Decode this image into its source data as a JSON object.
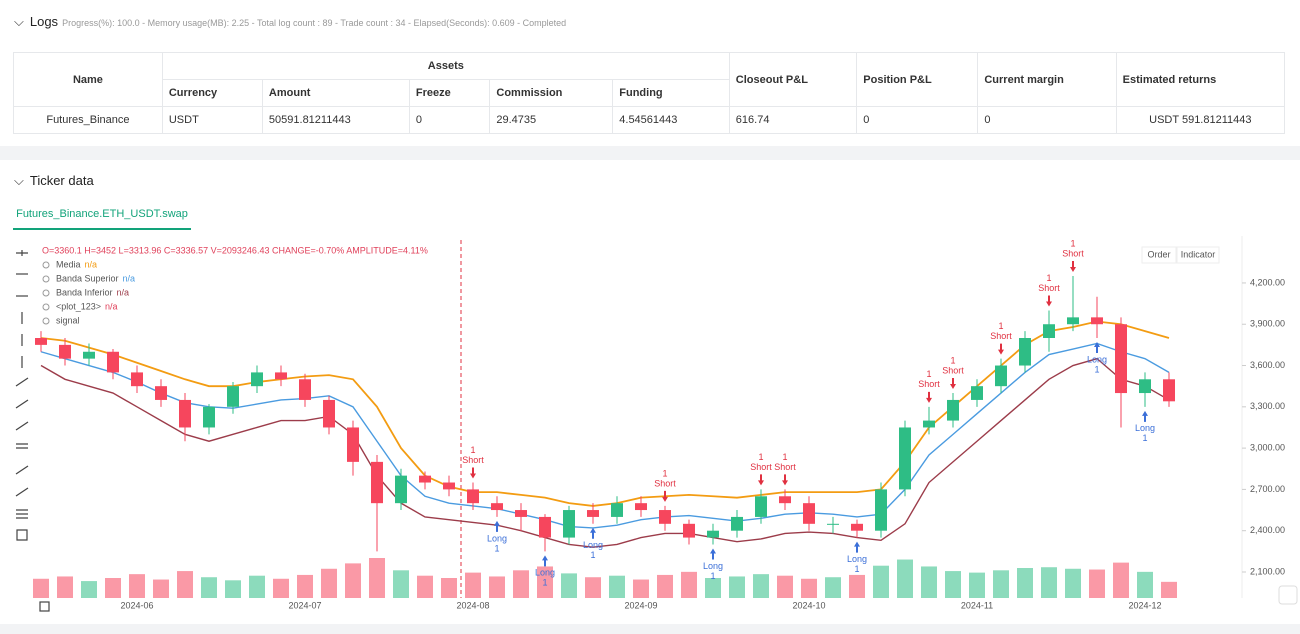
{
  "logs": {
    "title": "Logs",
    "status": "Progress(%): 100.0 - Memory usage(MB): 2.25 - Total log count : 89 - Trade count : 34 - Elapsed(Seconds): 0.609 - Completed",
    "table": {
      "group_header": "Assets",
      "columns": [
        "Name",
        "Currency",
        "Amount",
        "Freeze",
        "Commission",
        "Funding",
        "Closeout P&L",
        "Position P&L",
        "Current margin",
        "Estimated returns"
      ],
      "rows": [
        [
          "Futures_Binance",
          "USDT",
          "50591.81211443",
          "0",
          "29.4735",
          "4.54561443",
          "616.74",
          "0",
          "0",
          "USDT 591.81211443"
        ]
      ]
    }
  },
  "ticker": {
    "title": "Ticker data",
    "tab": "Futures_Binance.ETH_USDT.swap",
    "buttons": [
      "Order",
      "Indicator"
    ],
    "ohlc": "O=3360.1 H=3452 L=3313.96 C=3336.57 V=2093246.43 CHANGE=-0.70% AMPLITUDE=4.11%"
  },
  "chart_data": {
    "type": "candlestick",
    "up_color": "#2ebd85",
    "down_color": "#f6465d",
    "categories": [
      null,
      null,
      null,
      null,
      "2024-06",
      null,
      null,
      null,
      null,
      null,
      null,
      "2024-07",
      null,
      null,
      null,
      null,
      null,
      null,
      "2024-08",
      null,
      null,
      null,
      null,
      null,
      null,
      "2024-09",
      null,
      null,
      null,
      null,
      null,
      null,
      "2024-10",
      null,
      null,
      null,
      null,
      null,
      null,
      "2024-11",
      null,
      null,
      null,
      null,
      null,
      null,
      "2024-12",
      null
    ],
    "open": [
      3800,
      3750,
      3650,
      3700,
      3550,
      3450,
      3350,
      3150,
      3300,
      3450,
      3550,
      3500,
      3350,
      3150,
      2900,
      2600,
      2800,
      2750,
      2700,
      2600,
      2550,
      2500,
      2350,
      2550,
      2500,
      2600,
      2550,
      2450,
      2350,
      2400,
      2500,
      2650,
      2600,
      2450,
      2450,
      2400,
      2700,
      3150,
      3200,
      3350,
      3450,
      3600,
      3800,
      3900,
      3950,
      3900,
      3400,
      3500
    ],
    "high": [
      3850,
      3800,
      3760,
      3720,
      3600,
      3500,
      3400,
      3320,
      3480,
      3600,
      3600,
      3540,
      3380,
      3200,
      2950,
      2850,
      2830,
      2800,
      2750,
      2650,
      2600,
      2520,
      2580,
      2600,
      2650,
      2650,
      2580,
      2480,
      2450,
      2550,
      2700,
      2700,
      2650,
      2500,
      2480,
      2750,
      3200,
      3300,
      3400,
      3500,
      3650,
      3850,
      4000,
      4250,
      4100,
      3950,
      3550,
      3550
    ],
    "low": [
      3700,
      3600,
      3600,
      3500,
      3400,
      3300,
      3050,
      3100,
      3250,
      3400,
      3450,
      3300,
      3100,
      2800,
      2250,
      2550,
      2700,
      2650,
      2550,
      2500,
      2400,
      2250,
      2300,
      2450,
      2450,
      2500,
      2400,
      2300,
      2300,
      2350,
      2450,
      2550,
      2400,
      2380,
      2350,
      2350,
      2650,
      3100,
      3150,
      3300,
      3400,
      3550,
      3700,
      3850,
      3800,
      3150,
      3300,
      3300
    ],
    "close": [
      3750,
      3650,
      3700,
      3550,
      3450,
      3350,
      3150,
      3300,
      3450,
      3550,
      3500,
      3350,
      3150,
      2900,
      2600,
      2800,
      2750,
      2700,
      2600,
      2550,
      2500,
      2350,
      2550,
      2500,
      2600,
      2550,
      2450,
      2350,
      2400,
      2500,
      2650,
      2600,
      2450,
      2450,
      2400,
      2700,
      3150,
      3200,
      3350,
      3450,
      3600,
      3800,
      3900,
      3950,
      3900,
      3400,
      3500,
      3340
    ],
    "volume": [
      2500000,
      2800000,
      2200000,
      2600000,
      3100000,
      2400000,
      3500000,
      2700000,
      2300000,
      2900000,
      2500000,
      3000000,
      3800000,
      4500000,
      5200000,
      3600000,
      2900000,
      2600000,
      3300000,
      2800000,
      3600000,
      4100000,
      3200000,
      2700000,
      2900000,
      2400000,
      3000000,
      3400000,
      2600000,
      2800000,
      3100000,
      2900000,
      2500000,
      2700000,
      3000000,
      4200000,
      5000000,
      4100000,
      3500000,
      3300000,
      3600000,
      3900000,
      4000000,
      3800000,
      3700000,
      4600000,
      3400000,
      2100000
    ],
    "series": [
      {
        "name": "Media",
        "status": "n/a",
        "color": "#f39c12",
        "values": [
          3800,
          3780,
          3730,
          3680,
          3620,
          3560,
          3500,
          3450,
          3450,
          3480,
          3500,
          3520,
          3530,
          3500,
          3300,
          3000,
          2800,
          2720,
          2680,
          2680,
          2660,
          2640,
          2600,
          2580,
          2600,
          2640,
          2650,
          2660,
          2650,
          2640,
          2660,
          2680,
          2680,
          2680,
          2680,
          2700,
          2900,
          3150,
          3300,
          3450,
          3600,
          3750,
          3850,
          3880,
          3920,
          3900,
          3850,
          3800
        ]
      },
      {
        "name": "Banda Superior",
        "status": "n/a",
        "color": "#4a9be0",
        "values": [
          3700,
          3650,
          3600,
          3550,
          3480,
          3400,
          3330,
          3300,
          3290,
          3320,
          3350,
          3360,
          3380,
          3300,
          3050,
          2800,
          2650,
          2600,
          2580,
          2560,
          2520,
          2480,
          2430,
          2420,
          2440,
          2480,
          2500,
          2510,
          2490,
          2470,
          2490,
          2520,
          2530,
          2520,
          2500,
          2520,
          2700,
          2950,
          3100,
          3250,
          3400,
          3550,
          3680,
          3720,
          3760,
          3700,
          3650,
          3550
        ]
      },
      {
        "name": "Banda Inferior",
        "status": "n/a",
        "color": "#9c3c4a",
        "values": [
          3600,
          3500,
          3450,
          3400,
          3300,
          3200,
          3100,
          3050,
          3100,
          3150,
          3200,
          3200,
          3230,
          3100,
          2800,
          2600,
          2500,
          2480,
          2460,
          2440,
          2400,
          2350,
          2300,
          2280,
          2300,
          2350,
          2380,
          2380,
          2350,
          2320,
          2340,
          2380,
          2390,
          2380,
          2350,
          2330,
          2450,
          2750,
          2900,
          3050,
          3200,
          3350,
          3500,
          3600,
          3650,
          3500,
          3450,
          3350
        ]
      },
      {
        "name": "<plot_123>",
        "status": "n/a",
        "color": "#e0405a"
      },
      {
        "name": "signal",
        "color": "#888888"
      }
    ],
    "signals": [
      null,
      null,
      null,
      null,
      null,
      null,
      null,
      null,
      null,
      null,
      null,
      null,
      null,
      null,
      null,
      null,
      null,
      null,
      {
        "label": "Short",
        "count": "1"
      },
      {
        "label": "Long",
        "count": "1"
      },
      null,
      {
        "label": "Long",
        "count": "1"
      },
      null,
      {
        "label": "Long",
        "count": "1"
      },
      null,
      null,
      {
        "label": "Short",
        "count": "1"
      },
      null,
      {
        "label": "Long",
        "count": "1"
      },
      null,
      {
        "label": "Short",
        "count": "1"
      },
      {
        "label": "Short",
        "count": "1"
      },
      null,
      null,
      {
        "label": "Long",
        "count": "1"
      },
      null,
      null,
      {
        "label": "Short",
        "count": "1"
      },
      {
        "label": "Short",
        "count": "1"
      },
      null,
      {
        "label": "Short",
        "count": "1"
      },
      null,
      {
        "label": "Short",
        "count": "1"
      },
      {
        "label": "Short",
        "count": "1"
      },
      {
        "label": "Long",
        "count": "1"
      },
      null,
      {
        "label": "Long",
        "count": "1"
      },
      null
    ],
    "ylim": [
      1911,
      4512
    ],
    "yticks": [
      {
        "value": 2100,
        "label": "2,100.00"
      },
      {
        "value": 2400,
        "label": "2,400.00"
      },
      {
        "value": 2700,
        "label": "2,700.00"
      },
      {
        "value": 3000,
        "label": "3,000.00"
      },
      {
        "value": 3300,
        "label": "3,300.00"
      },
      {
        "value": 3600,
        "label": "3,600.00"
      },
      {
        "value": 3900,
        "label": "3,900.00"
      },
      {
        "value": 4200,
        "label": "4,200.00"
      }
    ]
  }
}
